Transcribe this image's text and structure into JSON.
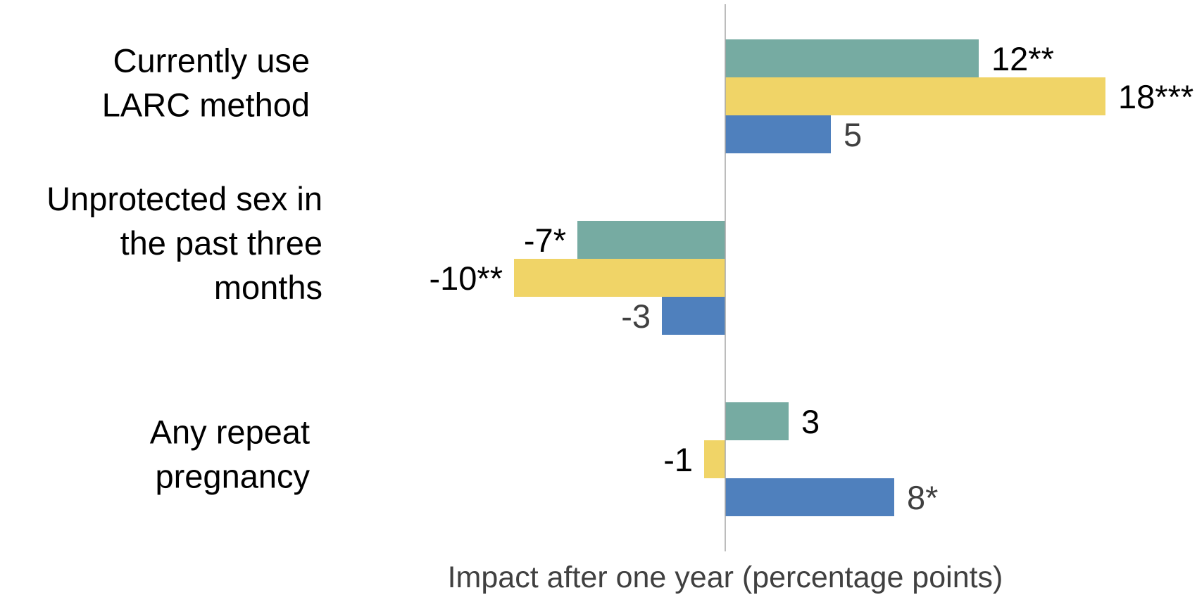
{
  "chart_data": {
    "type": "bar",
    "orientation": "horizontal",
    "xlabel": "Impact after one year (percentage points)",
    "categories": [
      [
        "Currently use",
        "LARC method"
      ],
      [
        "Unprotected sex in",
        "the past three",
        "months"
      ],
      [
        "Any repeat",
        "pregnancy"
      ]
    ],
    "series": [
      {
        "color": "#76ABA2",
        "values": [
          12,
          -7,
          3
        ],
        "labels": [
          "12**",
          "-7*",
          "3"
        ],
        "label_color": "#000000"
      },
      {
        "color": "#F0D467",
        "values": [
          18,
          -10,
          -1
        ],
        "labels": [
          "18***",
          "-10**",
          "-1"
        ],
        "label_color": "#000000"
      },
      {
        "color": "#4F80BD",
        "values": [
          5,
          -3,
          8
        ],
        "labels": [
          "5",
          "-3",
          "8*"
        ],
        "label_color": "#404040"
      }
    ],
    "xlim": [
      -10,
      18
    ],
    "grid": false,
    "legend": "none",
    "zero_line_color": "#A6A6A6"
  }
}
